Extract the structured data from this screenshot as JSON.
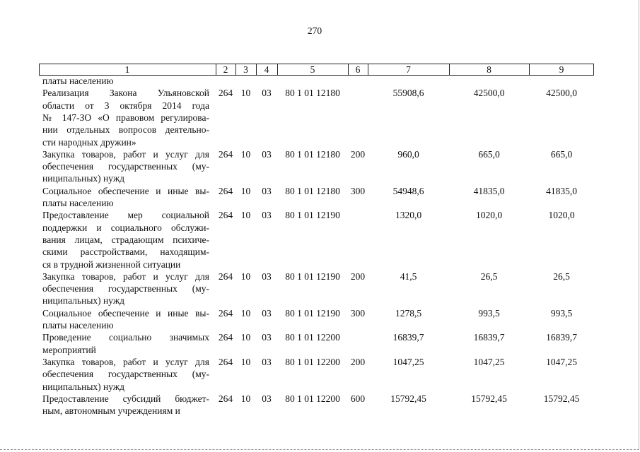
{
  "page_number": "270",
  "table": {
    "header": [
      "1",
      "2",
      "3",
      "4",
      "5",
      "6",
      "7",
      "8",
      "9"
    ],
    "rows": [
      {
        "lines": [
          "платы населению"
        ]
      },
      {
        "lines": [
          "Реализация Закона Ульяновской",
          "области от 3 октября 2014 года",
          "№ 147-ЗО «О правовом регулирова-",
          "нии отдельных вопросов деятельно-",
          "сти народных дружин»"
        ],
        "cells": {
          "2": "264",
          "3": "10",
          "4": "03",
          "5": "80 1 01 12180",
          "7": "55908,6",
          "8": "42500,0",
          "9": "42500,0"
        }
      },
      {
        "lines": [
          "Закупка товаров, работ и услуг для",
          "обеспечения государственных (му-",
          "ниципальных) нужд"
        ],
        "cells": {
          "2": "264",
          "3": "10",
          "4": "03",
          "5": "80 1 01 12180",
          "6": "200",
          "7": "960,0",
          "8": "665,0",
          "9": "665,0"
        }
      },
      {
        "lines": [
          "Социальное обеспечение и иные вы-",
          "платы населению"
        ],
        "cells": {
          "2": "264",
          "3": "10",
          "4": "03",
          "5": "80 1 01 12180",
          "6": "300",
          "7": "54948,6",
          "8": "41835,0",
          "9": "41835,0"
        }
      },
      {
        "lines": [
          "Предоставление мер социальной",
          "поддержки и социального обслужи-",
          "вания лицам, страдающим психиче-",
          "скими расстройствами, находящим-",
          "ся в трудной жизненной ситуации"
        ],
        "cells": {
          "2": "264",
          "3": "10",
          "4": "03",
          "5": "80 1 01 12190",
          "7": "1320,0",
          "8": "1020,0",
          "9": "1020,0"
        }
      },
      {
        "lines": [
          "Закупка товаров, работ и услуг для",
          "обеспечения государственных (му-",
          "ниципальных) нужд"
        ],
        "cells": {
          "2": "264",
          "3": "10",
          "4": "03",
          "5": "80 1 01 12190",
          "6": "200",
          "7": "41,5",
          "8": "26,5",
          "9": "26,5"
        }
      },
      {
        "lines": [
          "Социальное обеспечение и иные вы-",
          "платы населению"
        ],
        "cells": {
          "2": "264",
          "3": "10",
          "4": "03",
          "5": "80 1 01 12190",
          "6": "300",
          "7": "1278,5",
          "8": "993,5",
          "9": "993,5"
        }
      },
      {
        "lines": [
          "Проведение социально значимых",
          "мероприятий"
        ],
        "cells": {
          "2": "264",
          "3": "10",
          "4": "03",
          "5": "80 1 01 12200",
          "7": "16839,7",
          "8": "16839,7",
          "9": "16839,7"
        }
      },
      {
        "lines": [
          "Закупка товаров, работ и услуг для",
          "обеспечения государственных (му-",
          "ниципальных) нужд"
        ],
        "cells": {
          "2": "264",
          "3": "10",
          "4": "03",
          "5": "80 1 01 12200",
          "6": "200",
          "7": "1047,25",
          "8": "1047,25",
          "9": "1047,25"
        }
      },
      {
        "lines": [
          "Предоставление субсидий бюджет-",
          "ным, автономным учреждениям и"
        ],
        "cells": {
          "2": "264",
          "3": "10",
          "4": "03",
          "5": "80 1 01 12200",
          "6": "600",
          "7": "15792,45",
          "8": "15792,45",
          "9": "15792,45"
        }
      }
    ]
  }
}
